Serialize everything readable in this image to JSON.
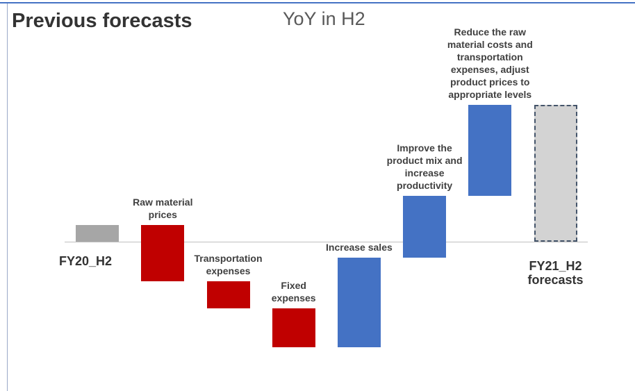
{
  "chart_data": {
    "type": "waterfall",
    "title": "Previous forecasts",
    "subtitle": "YoY in H2",
    "categories": [
      "FY20_H2",
      "Raw material prices",
      "Transportation expenses",
      "Fixed expenses",
      "Increase sales",
      "Improve the product mix and increase productivity",
      "Reduce the raw material costs and transportation expenses, adjust product prices to appropriate levels",
      "FY21_H2 forecasts"
    ],
    "values": [
      24,
      -81,
      -39,
      -56,
      129,
      89,
      131,
      197
    ],
    "colors": [
      "#a6a6a6",
      "#c00000",
      "#c00000",
      "#c00000",
      "#4472c4",
      "#4472c4",
      "#4472c4",
      "#d3d3d3"
    ],
    "ylim": [
      -215,
      290
    ]
  }
}
